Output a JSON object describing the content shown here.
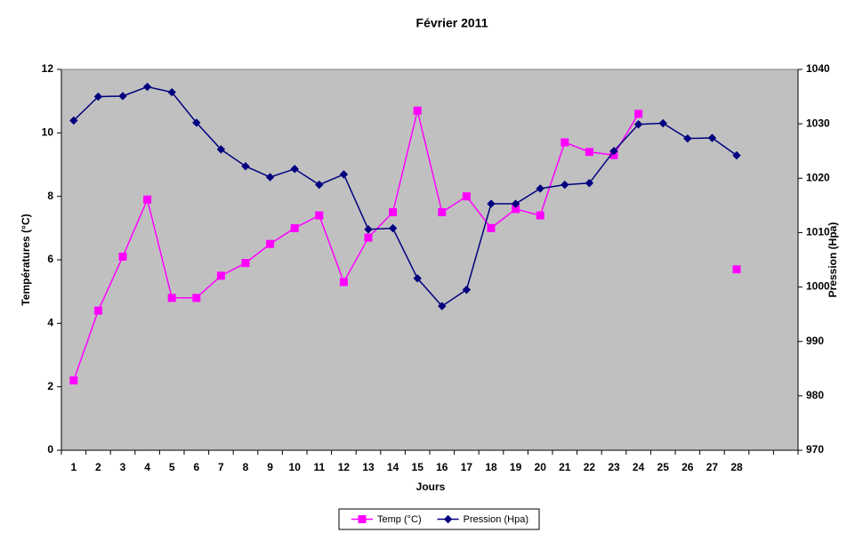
{
  "chart_data": {
    "type": "line",
    "title": "Février 2011",
    "x_label": "Jours",
    "y_label": "Températures (°C)",
    "y2_label": "Pression (Hpa)",
    "categories": [
      "1",
      "2",
      "3",
      "4",
      "5",
      "6",
      "7",
      "8",
      "9",
      "10",
      "11",
      "12",
      "13",
      "14",
      "15",
      "16",
      "17",
      "18",
      "19",
      "20",
      "21",
      "22",
      "23",
      "24",
      "25",
      "26",
      "27",
      "28",
      null,
      null
    ],
    "series": [
      {
        "name": "Temp (°C)",
        "color": "#ff00ff",
        "marker": "square",
        "values": [
          2.2,
          4.4,
          6.1,
          7.9,
          4.8,
          4.8,
          5.5,
          5.9,
          6.5,
          7.0,
          7.4,
          5.3,
          6.7,
          7.5,
          10.7,
          7.5,
          8.0,
          7.0,
          7.6,
          7.4,
          9.7,
          9.4,
          9.3,
          10.6,
          null,
          null,
          null,
          5.7,
          null,
          null
        ]
      },
      {
        "name": "Pression (Hpa)",
        "color": "#000080",
        "marker": "diamond",
        "axis": "y2",
        "values": [
          1030.6,
          1035.0,
          1035.1,
          1036.8,
          1035.8,
          1030.2,
          1025.3,
          1022.2,
          1020.2,
          1021.7,
          1018.8,
          1020.7,
          1010.6,
          1010.8,
          1001.6,
          996.5,
          999.5,
          1015.3,
          1015.3,
          1018.1,
          1018.8,
          1019.1,
          1025.0,
          1029.9,
          1030.1,
          1027.3,
          1027.4,
          1024.2,
          null,
          null
        ]
      }
    ],
    "ylim": [
      0,
      12
    ],
    "yticks": [
      0,
      2,
      4,
      6,
      8,
      10,
      12
    ],
    "y2lim": [
      970,
      1040
    ],
    "y2ticks": [
      970,
      980,
      990,
      1000,
      1010,
      1020,
      1030,
      1040
    ],
    "grid": false,
    "legend": "bottom",
    "plot_background": "#c0c0c0"
  }
}
